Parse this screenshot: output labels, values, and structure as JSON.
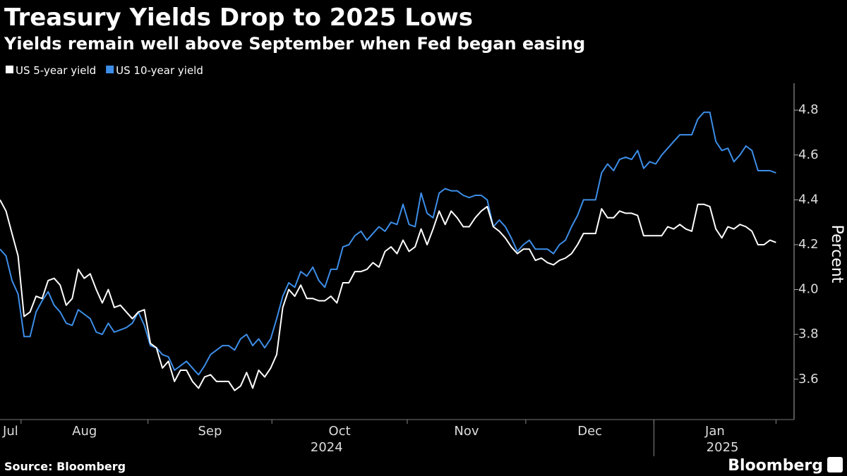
{
  "chart_data": {
    "type": "line",
    "title": "Treasury Yields Drop to 2025 Lows",
    "subtitle": "Yields remain well above September when Fed began easing",
    "y_label": "Percent",
    "source": "Source: Bloomberg",
    "brand": "Bloomberg",
    "xlim": [
      0,
      132
    ],
    "xticks": [
      3.5,
      24.6,
      45.2,
      67.7,
      87.4,
      108.7,
      129
    ],
    "xtick_labels": [
      "Jul",
      "Aug",
      "Sep",
      "Oct",
      "Nov",
      "Dec",
      "Jan"
    ],
    "year_labels": [
      {
        "value": 54.3,
        "label": "2024"
      },
      {
        "value": 120.1,
        "label": "2025"
      }
    ],
    "year_break": 108.7,
    "ylim": [
      3.42,
      4.92
    ],
    "yticks": [
      3.6,
      3.8,
      {
        "value": 4,
        "label": "4.0"
      },
      4.2,
      4.4,
      4.6,
      4.8
    ],
    "series": [
      {
        "name": "US 5-year yield",
        "color": "#ffffff",
        "values": [
          4.4,
          4.35,
          4.25,
          4.15,
          3.88,
          3.9,
          3.97,
          3.96,
          4.04,
          4.05,
          4.02,
          3.93,
          3.96,
          4.09,
          4.05,
          4.07,
          4.0,
          3.94,
          4.0,
          3.92,
          3.93,
          3.9,
          3.87,
          3.9,
          3.91,
          3.76,
          3.74,
          3.65,
          3.68,
          3.59,
          3.64,
          3.64,
          3.59,
          3.56,
          3.61,
          3.62,
          3.59,
          3.59,
          3.59,
          3.55,
          3.57,
          3.63,
          3.56,
          3.64,
          3.61,
          3.65,
          3.71,
          3.92,
          4.0,
          3.97,
          4.02,
          3.96,
          3.96,
          3.95,
          3.95,
          3.97,
          3.94,
          4.03,
          4.03,
          4.08,
          4.08,
          4.09,
          4.12,
          4.1,
          4.17,
          4.19,
          4.16,
          4.22,
          4.17,
          4.19,
          4.27,
          4.2,
          4.27,
          4.35,
          4.29,
          4.35,
          4.32,
          4.28,
          4.28,
          4.32,
          4.35,
          4.37,
          4.28,
          4.26,
          4.23,
          4.19,
          4.16,
          4.18,
          4.18,
          4.13,
          4.14,
          4.12,
          4.11,
          4.13,
          4.14,
          4.16,
          4.2,
          4.25,
          4.25,
          4.25,
          4.36,
          4.32,
          4.32,
          4.35,
          4.34,
          4.34,
          4.33,
          4.24,
          4.24,
          4.24,
          4.24,
          4.28,
          4.27,
          4.29,
          4.27,
          4.26,
          4.38,
          4.38,
          4.37,
          4.27,
          4.23,
          4.28,
          4.27,
          4.29,
          4.28,
          4.26,
          4.2,
          4.2,
          4.22,
          4.21
        ]
      },
      {
        "name": "US 10-year yield",
        "color": "#3d8ee8",
        "values": [
          4.18,
          4.15,
          4.04,
          3.98,
          3.79,
          3.79,
          3.9,
          3.95,
          3.99,
          3.93,
          3.9,
          3.85,
          3.84,
          3.91,
          3.89,
          3.87,
          3.81,
          3.8,
          3.85,
          3.81,
          3.82,
          3.83,
          3.85,
          3.9,
          3.84,
          3.75,
          3.74,
          3.71,
          3.7,
          3.64,
          3.66,
          3.68,
          3.65,
          3.62,
          3.66,
          3.71,
          3.73,
          3.75,
          3.75,
          3.73,
          3.78,
          3.8,
          3.75,
          3.78,
          3.74,
          3.78,
          3.87,
          3.97,
          4.03,
          4.01,
          4.08,
          4.06,
          4.1,
          4.04,
          4.01,
          4.09,
          4.09,
          4.19,
          4.2,
          4.24,
          4.26,
          4.22,
          4.25,
          4.28,
          4.26,
          4.3,
          4.29,
          4.38,
          4.29,
          4.28,
          4.43,
          4.34,
          4.32,
          4.43,
          4.45,
          4.44,
          4.44,
          4.42,
          4.41,
          4.42,
          4.42,
          4.4,
          4.28,
          4.31,
          4.28,
          4.23,
          4.17,
          4.2,
          4.22,
          4.18,
          4.18,
          4.18,
          4.16,
          4.2,
          4.22,
          4.28,
          4.33,
          4.4,
          4.4,
          4.4,
          4.52,
          4.56,
          4.53,
          4.58,
          4.59,
          4.58,
          4.62,
          4.54,
          4.57,
          4.56,
          4.6,
          4.63,
          4.66,
          4.69,
          4.69,
          4.69,
          4.76,
          4.79,
          4.79,
          4.66,
          4.62,
          4.63,
          4.57,
          4.6,
          4.64,
          4.62,
          4.53,
          4.53,
          4.53,
          4.52
        ]
      }
    ]
  }
}
